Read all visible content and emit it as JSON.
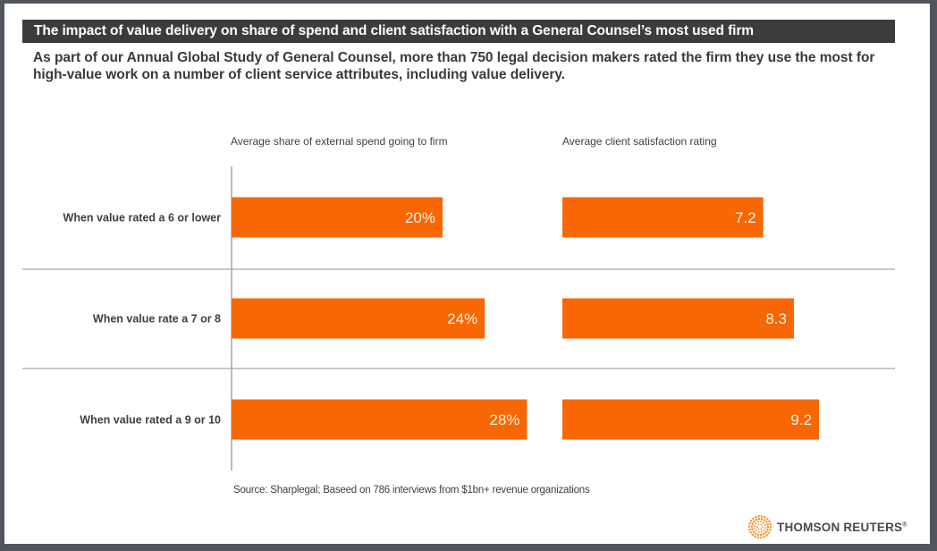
{
  "title": "The impact of value delivery on share of spend and client satisfaction with a General Counsel’s most used firm",
  "subtitle": "As part of our Annual Global Study of General Counsel, more than 750 legal decision makers rated the firm they use the most for high-value work on a number of client service attributes, including value delivery.",
  "source": "Source: Sharplegal; Baseed on 786 interviews from $1bn+ revenue organizations",
  "logo": {
    "text": "THOMSON REUTERS",
    "registered": "®",
    "icon": "thomson-reuters-logo-icon"
  },
  "colors": {
    "bar": "#f76706",
    "title_bar": "#3c3c3c",
    "frame": "#50565b"
  },
  "chart_data": [
    {
      "type": "bar",
      "orientation": "horizontal",
      "title": "Average  share of external spend going to firm",
      "categories": [
        "When value rated a 6 or lower",
        "When value rate a 7 or 8",
        "When value rated a 9 or 10"
      ],
      "values": [
        20,
        24,
        28
      ],
      "value_labels": [
        "20%",
        "24%",
        "28%"
      ],
      "unit": "%",
      "xlim": [
        0,
        30
      ],
      "grid": false
    },
    {
      "type": "bar",
      "orientation": "horizontal",
      "title": "Average  client satisfaction rating",
      "categories": [
        "When value rated a 6 or lower",
        "When value rate a 7 or 8",
        "When value rated a 9 or 10"
      ],
      "values": [
        7.2,
        8.3,
        9.2
      ],
      "value_labels": [
        "7.2",
        "8.3",
        "9.2"
      ],
      "unit": "rating",
      "xlim": [
        0,
        10
      ],
      "grid": false
    }
  ]
}
